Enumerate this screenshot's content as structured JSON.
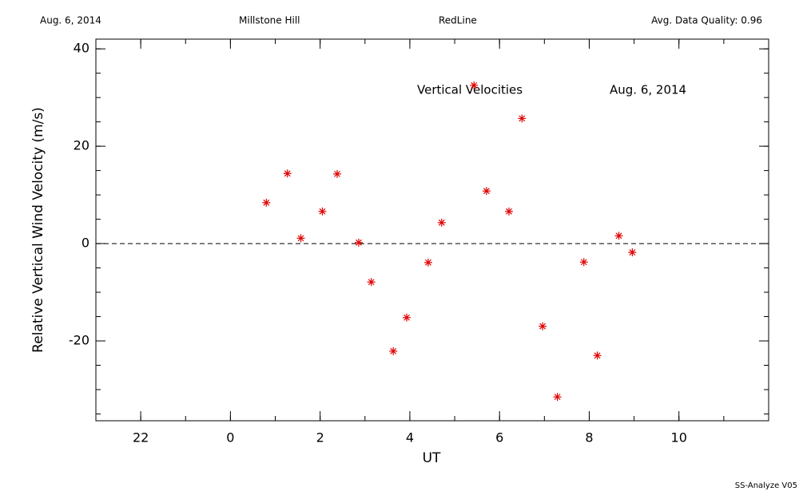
{
  "chart_data": {
    "type": "scatter",
    "header": [
      "Aug. 6, 2014",
      "Millstone Hill",
      "RedLine",
      "Avg. Data Quality: 0.96"
    ],
    "annotations": [
      "Vertical Velocities",
      "Aug. 6, 2014"
    ],
    "footer": "SS-Analyze V05",
    "x_label": "UT",
    "y_label": "Relative Vertical Wind Velocity (m/s)",
    "xlim": [
      -3,
      12
    ],
    "ylim": [
      -36.4,
      42
    ],
    "xticks": [
      {
        "value": -2,
        "label": "22"
      },
      0,
      2,
      4,
      6,
      8,
      10
    ],
    "yticks": [
      -20,
      0,
      20,
      40
    ],
    "color": "#e00000",
    "marker": "asterisk",
    "zero_line": true,
    "series": [
      {
        "x": [
          0.8,
          1.27,
          1.57,
          2.05,
          2.38,
          2.86,
          3.14,
          3.63,
          3.93,
          4.41,
          4.71,
          5.43,
          5.71,
          6.21,
          6.5,
          6.96,
          7.29,
          7.88,
          8.18,
          8.66,
          8.96
        ],
        "values": [
          8.4,
          14.4,
          1.1,
          6.6,
          14.3,
          0.2,
          -7.9,
          -22.1,
          -15.2,
          -3.9,
          4.3,
          32.5,
          10.8,
          6.6,
          25.7,
          -17.0,
          -31.5,
          -3.8,
          -23.0,
          1.6,
          -1.8
        ]
      }
    ]
  }
}
